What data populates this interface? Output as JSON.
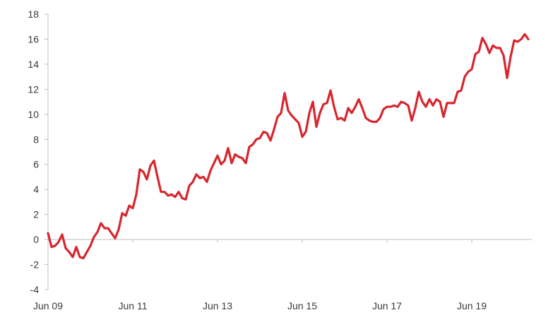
{
  "chart_data": {
    "type": "line",
    "title": "",
    "xlabel": "",
    "ylabel": "",
    "ylim": [
      -4,
      18
    ],
    "yticks": [
      -4,
      -2,
      0,
      2,
      4,
      6,
      8,
      10,
      12,
      14,
      16,
      18
    ],
    "ytick_labels": [
      "-4",
      "-2",
      "0",
      "2",
      "4",
      "6",
      "8",
      "10",
      "12",
      "14",
      "16",
      "18"
    ],
    "xticks": [
      0,
      24,
      48,
      72,
      96,
      120
    ],
    "xtick_labels": [
      "Jun 09",
      "Jun 11",
      "Jun 13",
      "Jun 15",
      "Jun 17",
      "Jun 19"
    ],
    "xlim": [
      0,
      137
    ],
    "grid": false,
    "legend": "none",
    "colors": {
      "series": "#d7262e",
      "axis": "#bfbfbf",
      "text": "#3a3a3a"
    },
    "x": [
      0,
      1,
      2,
      3,
      4,
      5,
      6,
      7,
      8,
      9,
      10,
      11,
      12,
      13,
      14,
      15,
      16,
      17,
      18,
      19,
      20,
      21,
      22,
      23,
      24,
      25,
      26,
      27,
      28,
      29,
      30,
      31,
      32,
      33,
      34,
      35,
      36,
      37,
      38,
      39,
      40,
      41,
      42,
      43,
      44,
      45,
      46,
      47,
      48,
      49,
      50,
      51,
      52,
      53,
      54,
      55,
      56,
      57,
      58,
      59,
      60,
      61,
      62,
      63,
      64,
      65,
      66,
      67,
      68,
      69,
      70,
      71,
      72,
      73,
      74,
      75,
      76,
      77,
      78,
      79,
      80,
      81,
      82,
      83,
      84,
      85,
      86,
      87,
      88,
      89,
      90,
      91,
      92,
      93,
      94,
      95,
      96,
      97,
      98,
      99,
      100,
      101,
      102,
      103,
      104,
      105,
      106,
      107,
      108,
      109,
      110,
      111,
      112,
      113,
      114,
      115,
      116,
      117,
      118,
      119,
      120,
      121,
      122,
      123,
      124,
      125,
      126,
      127,
      128,
      129,
      130,
      131,
      132,
      133,
      134,
      135,
      136
    ],
    "series": [
      {
        "values": [
          0.5,
          -0.6,
          -0.5,
          -0.2,
          0.4,
          -0.7,
          -1.0,
          -1.4,
          -0.6,
          -1.4,
          -1.5,
          -1.0,
          -0.5,
          0.2,
          0.6,
          1.3,
          0.9,
          0.9,
          0.5,
          0.1,
          0.8,
          2.1,
          1.9,
          2.7,
          2.5,
          3.6,
          5.6,
          5.4,
          4.8,
          5.9,
          6.3,
          5.0,
          3.8,
          3.8,
          3.5,
          3.6,
          3.4,
          3.8,
          3.3,
          3.2,
          4.3,
          4.6,
          5.2,
          4.9,
          5.0,
          4.6,
          5.5,
          6.1,
          6.7,
          6.0,
          6.3,
          7.3,
          6.1,
          6.8,
          6.6,
          6.5,
          6.1,
          7.4,
          7.6,
          8.0,
          8.1,
          8.6,
          8.5,
          7.9,
          8.8,
          9.8,
          10.1,
          11.7,
          10.3,
          9.9,
          9.6,
          9.3,
          8.2,
          8.6,
          10.1,
          11.0,
          9.0,
          10.1,
          10.8,
          10.9,
          11.9,
          10.6,
          9.6,
          9.7,
          9.5,
          10.5,
          10.1,
          10.6,
          11.2,
          10.5,
          9.7,
          9.5,
          9.4,
          9.4,
          9.7,
          10.4,
          10.6,
          10.6,
          10.7,
          10.6,
          11.0,
          10.9,
          10.7,
          9.5,
          10.5,
          11.8,
          11.0,
          10.6,
          11.2,
          10.7,
          11.2,
          11.0,
          9.8,
          10.9,
          10.9,
          10.9,
          11.8,
          11.9,
          13.0,
          13.4,
          13.6,
          14.8,
          15.0,
          16.1,
          15.6,
          14.9,
          15.5,
          15.3,
          15.3,
          14.7,
          12.9,
          14.6,
          15.9,
          15.8,
          16.0,
          16.4,
          16.0
        ]
      }
    ]
  }
}
